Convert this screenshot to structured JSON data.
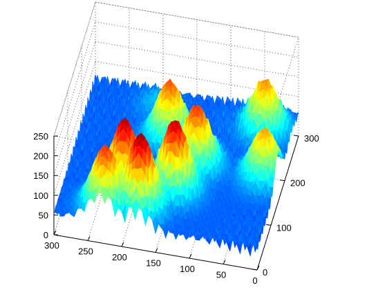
{
  "chart_data": {
    "type": "surface",
    "title": "",
    "xlabel": "",
    "ylabel": "",
    "zlabel": "",
    "colormap": "jet",
    "box": true,
    "grid": true,
    "x_axis": {
      "ticks": [
        0,
        50,
        100,
        150,
        200,
        250,
        300
      ],
      "tick_labels": [
        "0",
        "50",
        "100",
        "150",
        "200",
        "250",
        "300"
      ],
      "xlim": [
        0,
        300
      ]
    },
    "y_axis": {
      "ticks": [
        0,
        100,
        200,
        300
      ],
      "tick_labels": [
        "0",
        "100",
        "200",
        "300"
      ],
      "ylim": [
        0,
        300
      ]
    },
    "z_axis": {
      "ticks": [
        0,
        50,
        100,
        150,
        200,
        250
      ],
      "tick_labels": [
        "0",
        "50",
        "100",
        "150",
        "200",
        "250"
      ],
      "zlim": [
        0,
        250
      ]
    },
    "surface_features": [
      {
        "x": 230,
        "y": 30,
        "z": 210
      },
      {
        "x": 210,
        "y": 70,
        "z": 240
      },
      {
        "x": 180,
        "y": 40,
        "z": 245
      },
      {
        "x": 140,
        "y": 90,
        "z": 235
      },
      {
        "x": 120,
        "y": 150,
        "z": 210
      },
      {
        "x": 170,
        "y": 200,
        "z": 200
      },
      {
        "x": 40,
        "y": 250,
        "z": 185
      },
      {
        "x": 20,
        "y": 150,
        "z": 180
      },
      {
        "x": 90,
        "y": 250,
        "z": 60
      },
      {
        "x": 200,
        "y": 260,
        "z": 80
      }
    ]
  }
}
